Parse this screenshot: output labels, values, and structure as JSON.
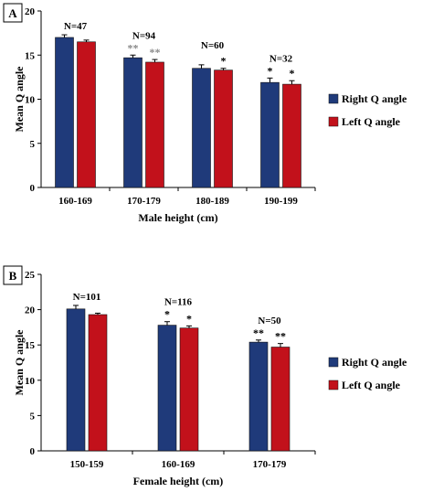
{
  "colors": {
    "right": "#1f3a7a",
    "left": "#c2111b",
    "star_a_grey": "#8c8c8c",
    "axis": "#000000"
  },
  "chart_data": [
    {
      "panel_label": "A",
      "type": "bar",
      "title": "",
      "xlabel": "Male height (cm)",
      "ylabel": "Mean Q angle",
      "ylim": [
        0,
        20
      ],
      "yticks": [
        0,
        5,
        10,
        15,
        20
      ],
      "categories": [
        "160-169",
        "170-179",
        "180-189",
        "190-199"
      ],
      "n_labels": [
        "N=47",
        "N=94",
        "N=60",
        "N=32"
      ],
      "series": [
        {
          "name": "Right Q angle",
          "values": [
            17.0,
            14.7,
            13.5,
            11.9
          ],
          "errors": [
            0.3,
            0.3,
            0.4,
            0.5
          ],
          "stars": [
            "",
            "**",
            "",
            "*"
          ]
        },
        {
          "name": "Left Q angle",
          "values": [
            16.5,
            14.2,
            13.3,
            11.7
          ],
          "errors": [
            0.2,
            0.3,
            0.2,
            0.4
          ],
          "stars": [
            "",
            "**",
            "*",
            "*"
          ]
        }
      ],
      "legend_position": "right"
    },
    {
      "panel_label": "B",
      "type": "bar",
      "title": "",
      "xlabel": "Female height (cm)",
      "ylabel": "Mean Q angle",
      "ylim": [
        0,
        25
      ],
      "yticks": [
        0,
        5,
        10,
        15,
        20,
        25
      ],
      "categories": [
        "150-159",
        "160-169",
        "170-179"
      ],
      "n_labels": [
        "N=101",
        "N=116",
        "N=50"
      ],
      "series": [
        {
          "name": "Right Q angle",
          "values": [
            20.1,
            17.8,
            15.4
          ],
          "errors": [
            0.5,
            0.5,
            0.3
          ],
          "stars": [
            "",
            "*",
            "**"
          ]
        },
        {
          "name": "Left Q angle",
          "values": [
            19.3,
            17.4,
            14.7
          ],
          "errors": [
            0.2,
            0.3,
            0.5
          ],
          "stars": [
            "",
            "*",
            "**"
          ]
        }
      ],
      "legend_position": "right"
    }
  ]
}
